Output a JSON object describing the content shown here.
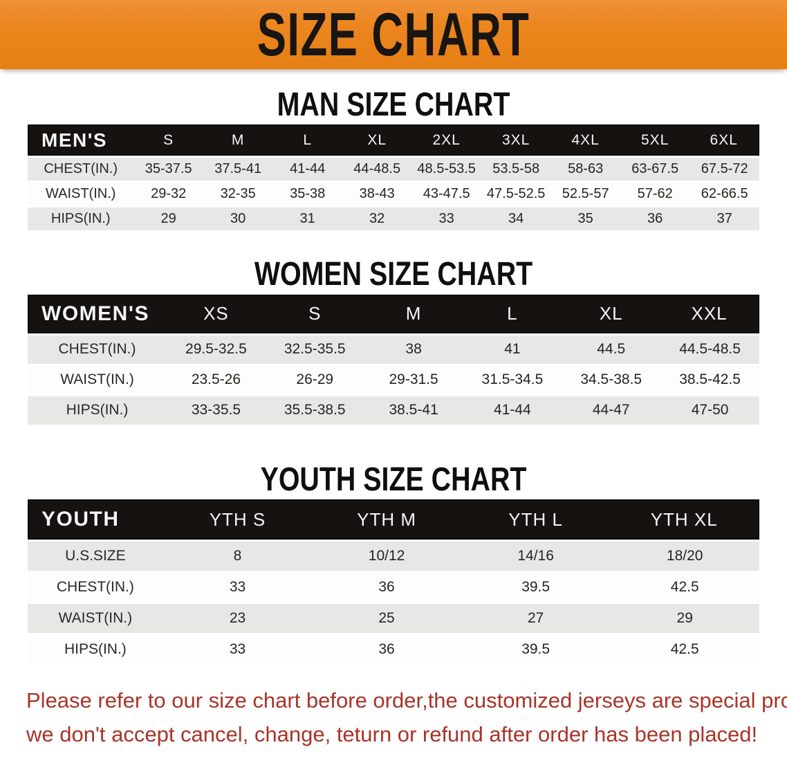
{
  "banner": {
    "title": "SIZE CHART"
  },
  "sections": [
    {
      "heading": "MAN SIZE CHART",
      "table": {
        "header_label": "MEN'S",
        "columns": [
          "S",
          "M",
          "L",
          "XL",
          "2XL",
          "3XL",
          "4XL",
          "5XL",
          "6XL"
        ],
        "rows": [
          {
            "label": "CHEST(IN.)",
            "values": [
              "35-37.5",
              "37.5-41",
              "41-44",
              "44-48.5",
              "48.5-53.5",
              "53.5-58",
              "58-63",
              "63-67.5",
              "67.5-72"
            ]
          },
          {
            "label": "WAIST(IN.)",
            "values": [
              "29-32",
              "32-35",
              "35-38",
              "38-43",
              "43-47.5",
              "47.5-52.5",
              "52.5-57",
              "57-62",
              "62-66.5"
            ]
          },
          {
            "label": "HIPS(IN.)",
            "values": [
              "29",
              "30",
              "31",
              "32",
              "33",
              "34",
              "35",
              "36",
              "37"
            ]
          }
        ]
      }
    },
    {
      "heading": "WOMEN SIZE CHART",
      "table": {
        "header_label": "WOMEN'S",
        "columns": [
          "XS",
          "S",
          "M",
          "L",
          "XL",
          "XXL"
        ],
        "rows": [
          {
            "label": "CHEST(IN.)",
            "values": [
              "29.5-32.5",
              "32.5-35.5",
              "38",
              "41",
              "44.5",
              "44.5-48.5"
            ]
          },
          {
            "label": "WAIST(IN.)",
            "values": [
              "23.5-26",
              "26-29",
              "29-31.5",
              "31.5-34.5",
              "34.5-38.5",
              "38.5-42.5"
            ]
          },
          {
            "label": "HIPS(IN.)",
            "values": [
              "33-35.5",
              "35.5-38.5",
              "38.5-41",
              "41-44",
              "44-47",
              "47-50"
            ]
          }
        ]
      }
    },
    {
      "heading": "YOUTH SIZE CHART",
      "table": {
        "header_label": "YOUTH",
        "columns": [
          "YTH S",
          "YTH M",
          "YTH L",
          "YTH XL"
        ],
        "rows": [
          {
            "label": "U.S.SIZE",
            "values": [
              "8",
              "10/12",
              "14/16",
              "18/20"
            ]
          },
          {
            "label": "CHEST(IN.)",
            "values": [
              "33",
              "36",
              "39.5",
              "42.5"
            ]
          },
          {
            "label": "WAIST(IN.)",
            "values": [
              "23",
              "25",
              "27",
              "29"
            ]
          },
          {
            "label": "HIPS(IN.)",
            "values": [
              "33",
              "36",
              "39.5",
              "42.5"
            ]
          }
        ]
      }
    }
  ],
  "footer": {
    "line1": "Please refer to our size chart before order,the customized jerseys are special products,",
    "line2": "we don't accept cancel, change, teturn or refund after order has been placed!"
  },
  "colors": {
    "banner_orange": "#ec861f",
    "header_black": "#161210",
    "row_gray": "#e7e7e6",
    "row_white": "#fdfdfd",
    "footer_red": "#a93328"
  }
}
